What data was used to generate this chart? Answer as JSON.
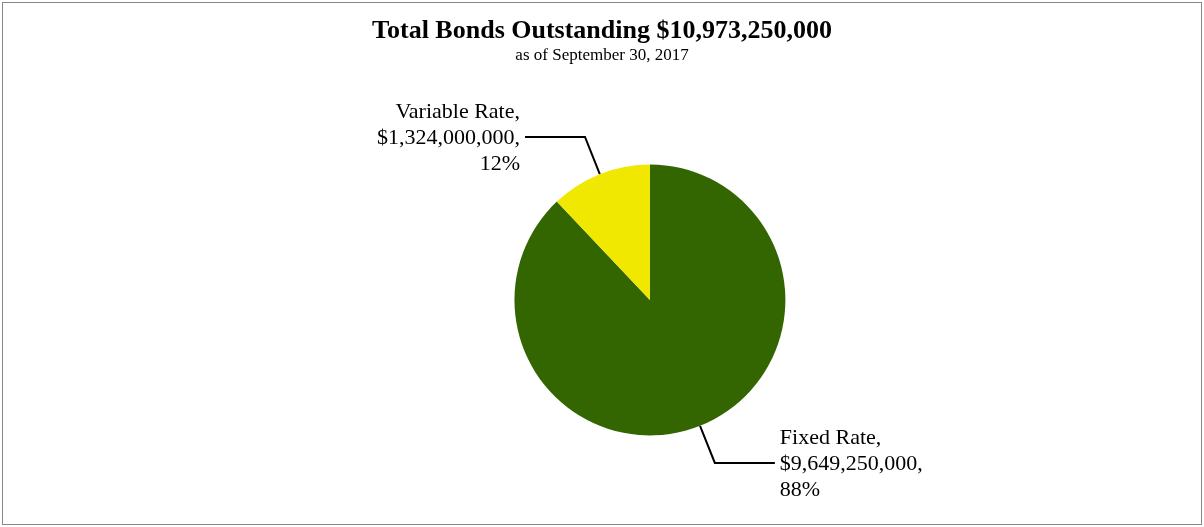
{
  "chart_data": {
    "type": "pie",
    "title": "Total Bonds Outstanding $10,973,250,000",
    "subtitle": "as of September 30, 2017",
    "categories": [
      "Fixed Rate",
      "Variable Rate"
    ],
    "values": [
      9649250000,
      1324000000
    ],
    "colors": [
      "#336600",
      "#f0e800"
    ],
    "value_labels": [
      ",\n$9,649,250,000,\n88%",
      ",\n$1,324,000,000,\n12%"
    ]
  }
}
